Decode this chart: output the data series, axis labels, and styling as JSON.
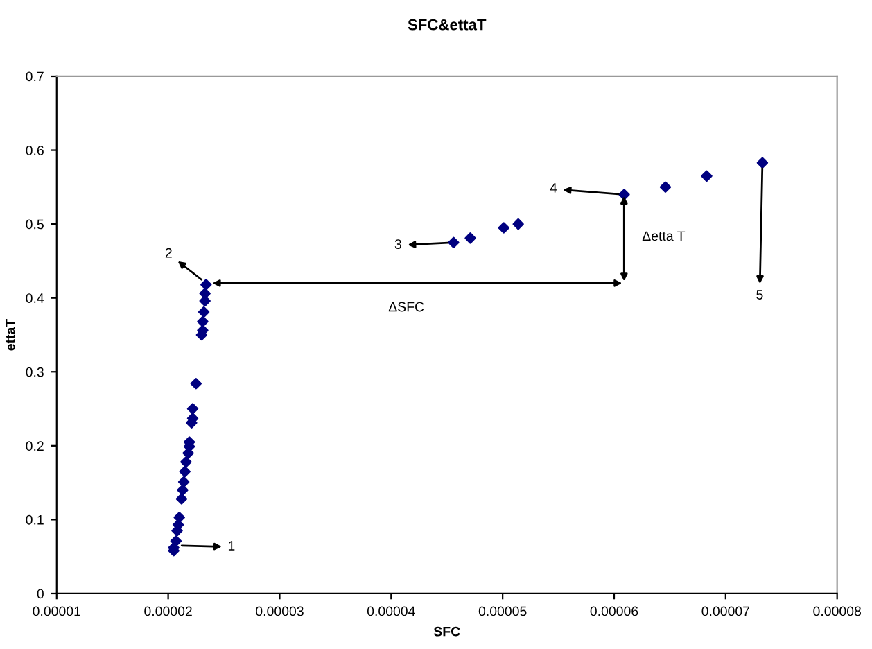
{
  "chart_data": {
    "type": "scatter",
    "title": "SFC&ettaT",
    "xlabel": "SFC",
    "ylabel": "ettaT",
    "x": [
      2.05e-05,
      2.05e-05,
      2.07e-05,
      2.08e-05,
      2.09e-05,
      2.1e-05,
      2.12e-05,
      2.13e-05,
      2.14e-05,
      2.15e-05,
      2.16e-05,
      2.18e-05,
      2.19e-05,
      2.19e-05,
      2.21e-05,
      2.22e-05,
      2.22e-05,
      2.25e-05,
      2.3e-05,
      2.31e-05,
      2.31e-05,
      2.32e-05,
      2.33e-05,
      2.33e-05,
      2.34e-05,
      4.56e-05,
      4.71e-05,
      5.01e-05,
      5.14e-05,
      6.09e-05,
      6.46e-05,
      6.83e-05,
      7.33e-05
    ],
    "series": [
      {
        "color": "#000080",
        "values": [
          0.058,
          0.062,
          0.071,
          0.085,
          0.093,
          0.103,
          0.128,
          0.14,
          0.151,
          0.165,
          0.178,
          0.19,
          0.199,
          0.205,
          0.231,
          0.237,
          0.25,
          0.284,
          0.35,
          0.356,
          0.368,
          0.381,
          0.396,
          0.406,
          0.418,
          0.475,
          0.481,
          0.495,
          0.5,
          0.54,
          0.55,
          0.565,
          0.583
        ]
      }
    ],
    "marker": "diamond",
    "xlim": [
      1e-05,
      8e-05
    ],
    "xticks": [
      {
        "value": 1e-05,
        "label": "0.00001"
      },
      {
        "value": 2e-05,
        "label": "0.00002"
      },
      {
        "value": 3e-05,
        "label": "0.00003"
      },
      {
        "value": 4e-05,
        "label": "0.00004"
      },
      {
        "value": 5e-05,
        "label": "0.00005"
      },
      {
        "value": 6e-05,
        "label": "0.00006"
      },
      {
        "value": 7e-05,
        "label": "0.00007"
      },
      {
        "value": 8e-05,
        "label": "0.00008"
      }
    ],
    "ylim": [
      0,
      0.7
    ],
    "yticks": [
      0,
      0.1,
      0.2,
      0.3,
      0.4,
      0.5,
      0.6,
      0.7
    ],
    "grid": false,
    "legend": false,
    "annotations": [
      {
        "text": "1",
        "x": 2.07e-05,
        "y": 0.065
      },
      {
        "text": "2",
        "x": 2.34e-05,
        "y": 0.42
      },
      {
        "text": "3",
        "x": 4.56e-05,
        "y": 0.475
      },
      {
        "text": "4",
        "x": 6.09e-05,
        "y": 0.54
      },
      {
        "text": "5",
        "x": 7.33e-05,
        "y": 0.583
      },
      "ΔSFC",
      "Δetta T"
    ]
  }
}
